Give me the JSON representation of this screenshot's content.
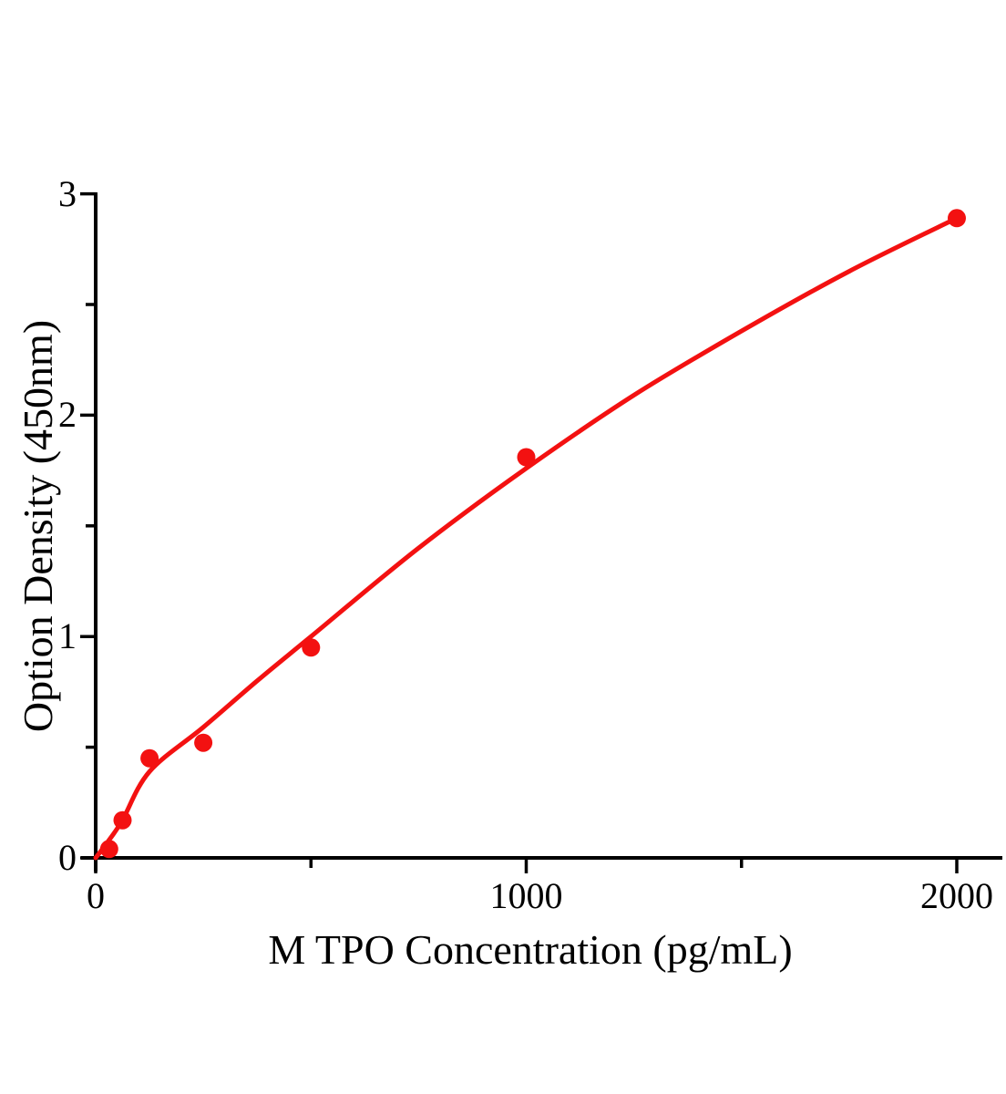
{
  "figure": {
    "background_color": "#ffffff",
    "axis_color": "#000000",
    "accent_color": "#f31111"
  },
  "chart_data": {
    "type": "scatter",
    "title": "",
    "xlabel": "M TPO  Concentration (pg/mL)",
    "ylabel": "Option Density (450nm)",
    "xlim": [
      0,
      2105
    ],
    "ylim": [
      0,
      3
    ],
    "grid": false,
    "legend_position": "none",
    "x_ticks_major": [
      0,
      1000,
      2000
    ],
    "x_tick_labels": [
      "0",
      "1000",
      "2000"
    ],
    "x_ticks_minor": [
      500,
      1500
    ],
    "y_ticks_major": [
      0,
      1,
      2,
      3
    ],
    "y_tick_labels": [
      "0",
      "1",
      "2",
      "3"
    ],
    "y_ticks_minor": [
      0.5,
      1.5,
      2.5
    ],
    "series": [
      {
        "name": "standard-points",
        "type": "scatter",
        "marker_shape": "circle",
        "marker_color": "#f31111",
        "x": [
          31.25,
          62.5,
          125,
          250,
          500,
          1000,
          2000
        ],
        "y": [
          0.04,
          0.17,
          0.45,
          0.52,
          0.95,
          1.81,
          2.89
        ]
      },
      {
        "name": "fitted-curve",
        "type": "line",
        "line_color": "#f31111",
        "x": [
          0,
          31,
          62,
          125,
          250,
          375,
          500,
          750,
          1000,
          1250,
          1500,
          1750,
          2000
        ],
        "y": [
          0,
          0.08,
          0.17,
          0.39,
          0.59,
          0.8,
          1.0,
          1.4,
          1.76,
          2.09,
          2.38,
          2.65,
          2.89
        ]
      }
    ]
  }
}
